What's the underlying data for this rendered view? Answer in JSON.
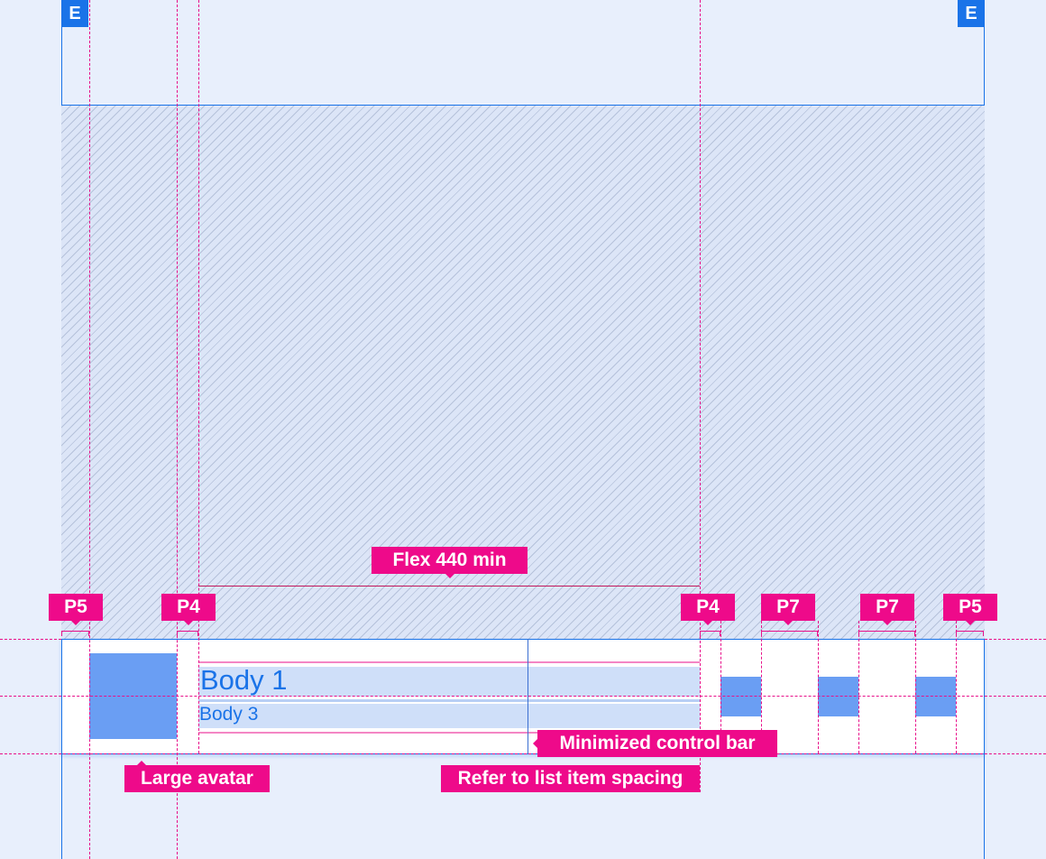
{
  "edge_badges": [
    "E",
    "E"
  ],
  "content": {
    "body1": "Body 1",
    "body3": "Body 3"
  },
  "annotations": {
    "flex": "Flex 440 min",
    "padding_left_outer": "P5",
    "padding_avatar_text": "P4",
    "padding_text_controls": "P4",
    "padding_control_1": "P7",
    "padding_control_2": "P7",
    "padding_right_outer": "P5",
    "large_avatar": "Large avatar",
    "minimized_control_bar": "Minimized control bar",
    "list_spacing": "Refer to list item spacing"
  },
  "colors": {
    "accent": "#1a73e8",
    "redline": "#ee0a8a",
    "placeholder": "#6a9ef3",
    "background": "#e8effc"
  }
}
